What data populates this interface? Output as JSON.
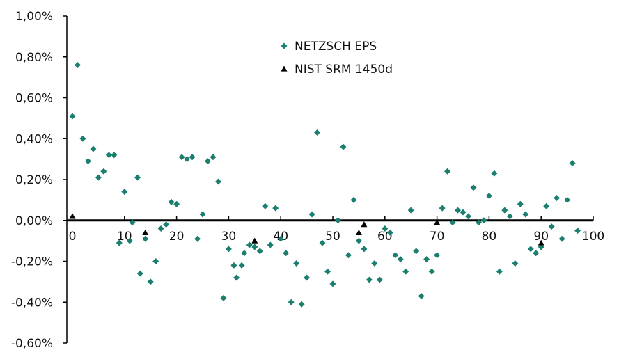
{
  "chart_data": {
    "type": "scatter",
    "title": "",
    "xlabel": "",
    "ylabel": "",
    "xlim": [
      0,
      100
    ],
    "ylim": [
      -0.6,
      1.0
    ],
    "x_ticks": [
      0,
      10,
      20,
      30,
      40,
      50,
      60,
      70,
      80,
      90,
      100
    ],
    "x_tick_labels": [
      "0",
      "10",
      "20",
      "30",
      "40",
      "50",
      "60",
      "70",
      "80",
      "90",
      "100"
    ],
    "y_ticks": [
      -0.6,
      -0.4,
      -0.2,
      0.0,
      0.2,
      0.4,
      0.6,
      0.8,
      1.0
    ],
    "y_tick_labels": [
      "-0,60%",
      "-0,40%",
      "-0,20%",
      "0,00%",
      "0,20%",
      "0,40%",
      "0,60%",
      "0,80%",
      "1,00%"
    ],
    "grid": false,
    "legend_position": "top-center",
    "series": [
      {
        "name": "NETZSCH EPS",
        "marker": "diamond",
        "color": "#1a7f6e",
        "points": [
          [
            0,
            0.51
          ],
          [
            1,
            0.76
          ],
          [
            2,
            0.4
          ],
          [
            3,
            0.29
          ],
          [
            4,
            0.35
          ],
          [
            5,
            0.21
          ],
          [
            6,
            0.24
          ],
          [
            7,
            0.32
          ],
          [
            8,
            0.32
          ],
          [
            9,
            -0.11
          ],
          [
            10,
            0.14
          ],
          [
            11,
            -0.1
          ],
          [
            11.5,
            -0.01
          ],
          [
            12.5,
            0.21
          ],
          [
            13,
            -0.26
          ],
          [
            14,
            -0.09
          ],
          [
            15,
            -0.3
          ],
          [
            16,
            -0.2
          ],
          [
            17,
            -0.04
          ],
          [
            18,
            -0.02
          ],
          [
            19,
            0.09
          ],
          [
            20,
            0.08
          ],
          [
            21,
            0.31
          ],
          [
            22,
            0.3
          ],
          [
            23,
            0.31
          ],
          [
            24,
            -0.09
          ],
          [
            25,
            0.03
          ],
          [
            26,
            0.29
          ],
          [
            27,
            0.31
          ],
          [
            28,
            0.19
          ],
          [
            29,
            -0.38
          ],
          [
            30,
            -0.14
          ],
          [
            31,
            -0.22
          ],
          [
            31.5,
            -0.28
          ],
          [
            32.5,
            -0.22
          ],
          [
            33,
            -0.16
          ],
          [
            34,
            -0.12
          ],
          [
            35,
            -0.13
          ],
          [
            36,
            -0.15
          ],
          [
            37,
            0.07
          ],
          [
            38,
            -0.12
          ],
          [
            39,
            0.06
          ],
          [
            40,
            -0.09
          ],
          [
            41,
            -0.16
          ],
          [
            42,
            -0.4
          ],
          [
            43,
            -0.21
          ],
          [
            44,
            -0.41
          ],
          [
            45,
            -0.28
          ],
          [
            46,
            0.03
          ],
          [
            47,
            0.43
          ],
          [
            48,
            -0.11
          ],
          [
            49,
            -0.25
          ],
          [
            50,
            -0.31
          ],
          [
            51,
            0.0
          ],
          [
            52,
            0.36
          ],
          [
            53,
            -0.17
          ],
          [
            54,
            0.1
          ],
          [
            55,
            -0.1
          ],
          [
            56,
            -0.14
          ],
          [
            57,
            -0.29
          ],
          [
            58,
            -0.21
          ],
          [
            59,
            -0.29
          ],
          [
            60,
            -0.04
          ],
          [
            61,
            -0.06
          ],
          [
            62,
            -0.17
          ],
          [
            63,
            -0.19
          ],
          [
            64,
            -0.25
          ],
          [
            65,
            0.05
          ],
          [
            66,
            -0.15
          ],
          [
            67,
            -0.37
          ],
          [
            68,
            -0.19
          ],
          [
            69,
            -0.25
          ],
          [
            70,
            -0.17
          ],
          [
            71,
            0.06
          ],
          [
            72,
            0.24
          ],
          [
            73,
            -0.01
          ],
          [
            74,
            0.05
          ],
          [
            75,
            0.04
          ],
          [
            76,
            0.02
          ],
          [
            77,
            0.16
          ],
          [
            78,
            -0.01
          ],
          [
            79,
            0.0
          ],
          [
            80,
            0.12
          ],
          [
            81,
            0.23
          ],
          [
            82,
            -0.25
          ],
          [
            83,
            0.05
          ],
          [
            84,
            0.02
          ],
          [
            85,
            -0.21
          ],
          [
            86,
            0.08
          ],
          [
            87,
            0.03
          ],
          [
            88,
            -0.14
          ],
          [
            89,
            -0.16
          ],
          [
            90,
            -0.13
          ],
          [
            91,
            0.07
          ],
          [
            92,
            -0.03
          ],
          [
            93,
            0.11
          ],
          [
            94,
            -0.09
          ],
          [
            95,
            0.1
          ],
          [
            96,
            0.28
          ],
          [
            97,
            -0.05
          ]
        ]
      },
      {
        "name": "NIST SRM 1450d",
        "marker": "triangle",
        "color": "#000000",
        "points": [
          [
            0,
            0.02
          ],
          [
            14,
            -0.06
          ],
          [
            35,
            -0.1
          ],
          [
            55,
            -0.06
          ],
          [
            56,
            -0.02
          ],
          [
            70,
            -0.01
          ],
          [
            90,
            -0.11
          ]
        ]
      }
    ]
  }
}
